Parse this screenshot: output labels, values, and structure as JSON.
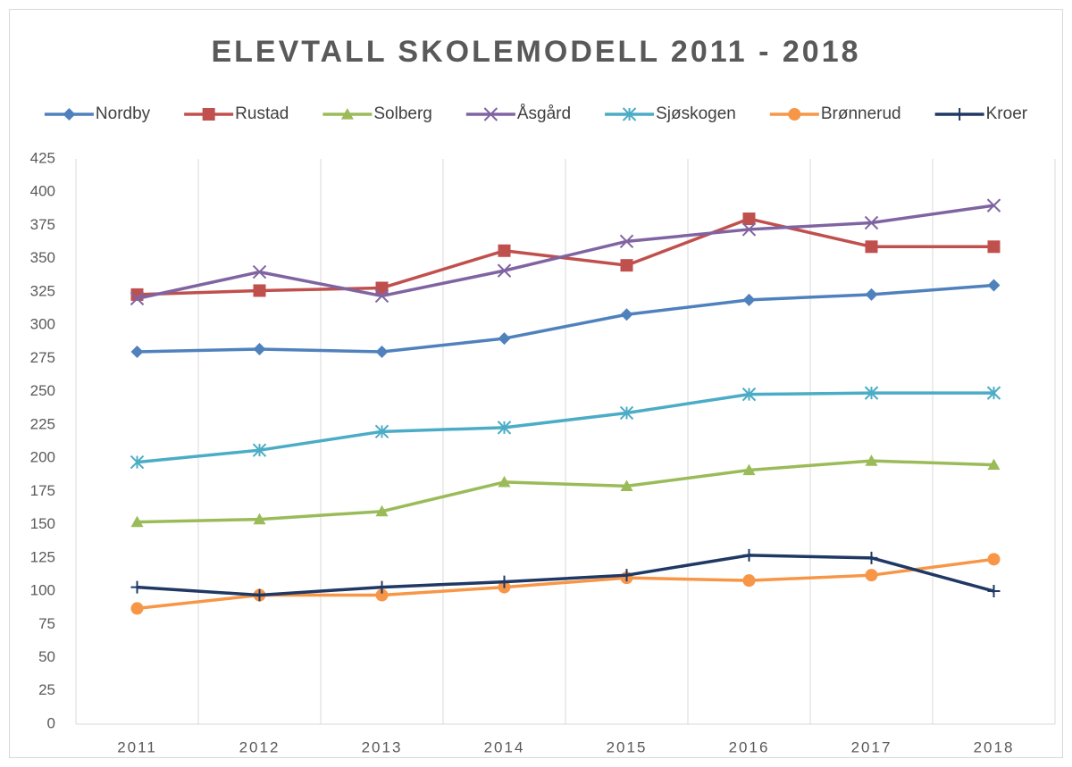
{
  "chart_data": {
    "type": "line",
    "title": "ELEVTALL SKOLEMODELL 2011 - 2018",
    "categories": [
      "2011",
      "2012",
      "2013",
      "2014",
      "2015",
      "2016",
      "2017",
      "2018"
    ],
    "series": [
      {
        "name": "Nordby",
        "color": "#4f81bd",
        "marker": "diamond",
        "values": [
          280,
          282,
          280,
          290,
          308,
          319,
          323,
          330
        ]
      },
      {
        "name": "Rustad",
        "color": "#c0504d",
        "marker": "square",
        "values": [
          323,
          326,
          328,
          356,
          345,
          380,
          359,
          359
        ]
      },
      {
        "name": "Solberg",
        "color": "#9bbb59",
        "marker": "triangle",
        "values": [
          152,
          154,
          160,
          182,
          179,
          191,
          198,
          195
        ]
      },
      {
        "name": "Åsgård",
        "color": "#8064a2",
        "marker": "x",
        "values": [
          320,
          340,
          322,
          341,
          363,
          372,
          377,
          390
        ]
      },
      {
        "name": "Sjøskogen",
        "color": "#4bacc6",
        "marker": "asterisk",
        "values": [
          197,
          206,
          220,
          223,
          234,
          248,
          249,
          249
        ]
      },
      {
        "name": "Brønnerud",
        "color": "#f79646",
        "marker": "circle",
        "values": [
          87,
          97,
          97,
          103,
          110,
          108,
          112,
          124
        ]
      },
      {
        "name": "Kroer",
        "color": "#1f3864",
        "marker": "plus",
        "values": [
          103,
          97,
          103,
          107,
          112,
          127,
          125,
          100
        ]
      }
    ],
    "ylim": [
      0,
      425
    ],
    "yticks": [
      0,
      25,
      50,
      75,
      100,
      125,
      150,
      175,
      200,
      225,
      250,
      275,
      300,
      325,
      350,
      375,
      400,
      425
    ],
    "grid": "vertical",
    "legend": "top"
  }
}
